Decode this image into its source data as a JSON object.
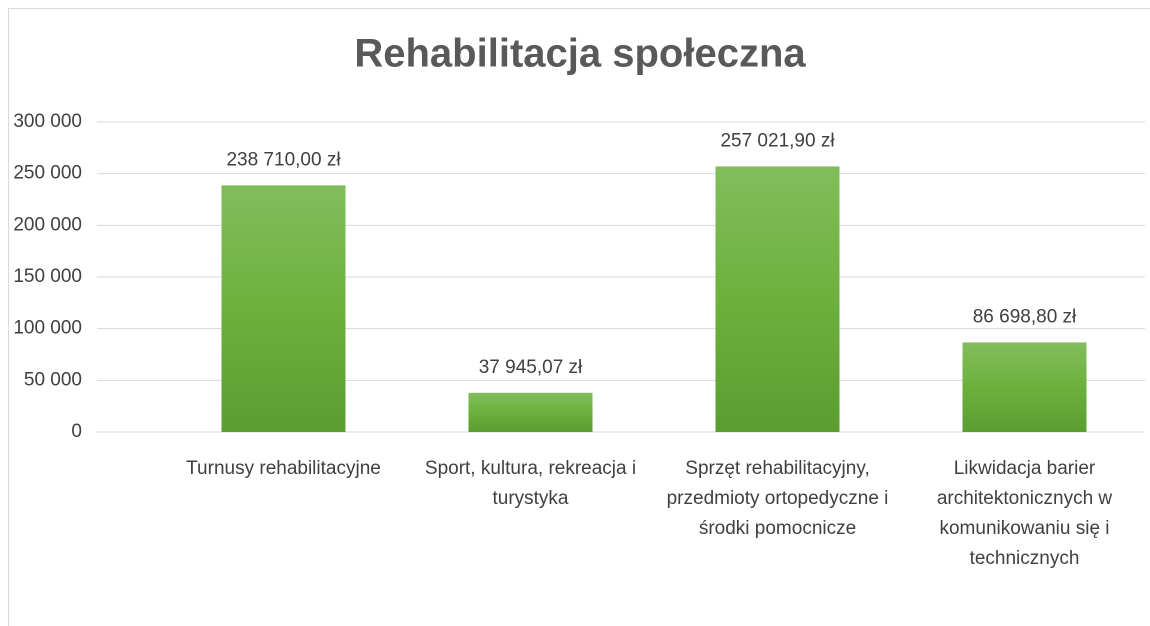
{
  "chart_data": {
    "type": "bar",
    "title": "Rehabilitacja społeczna",
    "categories": [
      "Turnusy rehabilitacyjne",
      "Sport, kultura, rekreacja i turystyka",
      "Sprzęt rehabilitacyjny, przedmioty ortopedyczne i środki pomocnicze",
      "Likwidacja barier architektonicznych w komunikowaniu się i technicznych"
    ],
    "values": [
      238710.0,
      37945.07,
      257021.9,
      86698.8
    ],
    "value_labels": [
      "238 710,00 zł",
      "37 945,07 zł",
      "257 021,90 zł",
      "86 698,80 zł"
    ],
    "color": "#6aaa3f",
    "ylim": [
      0,
      300000
    ],
    "yticks": [
      0,
      {
        "value": 50000,
        "label": "50 000"
      },
      {
        "value": 100000,
        "label": "100 000"
      },
      {
        "value": 150000,
        "label": "150 000"
      },
      {
        "value": 200000,
        "label": "200 000"
      },
      {
        "value": 250000,
        "label": "250 000"
      },
      {
        "value": 300000,
        "label": "300 000"
      }
    ],
    "grid": true
  }
}
